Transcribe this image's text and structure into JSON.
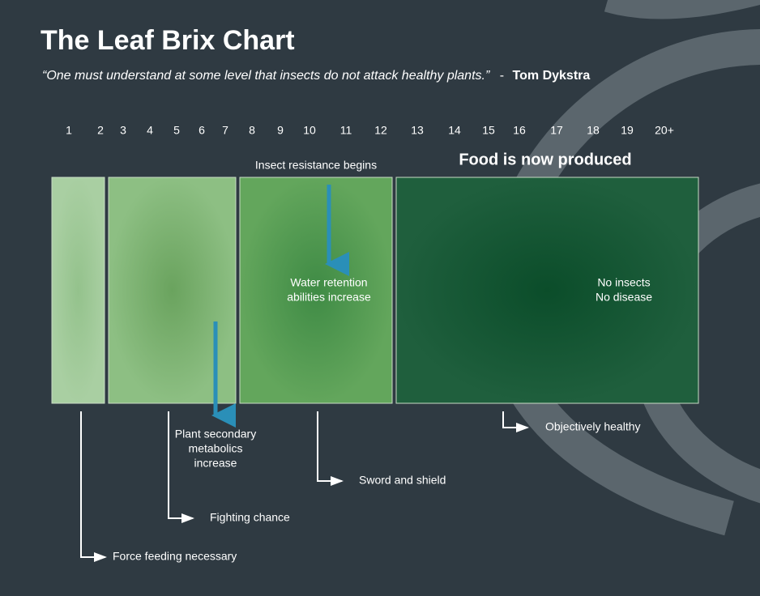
{
  "header": {
    "title": "The Leaf Brix Chart",
    "quote": "“One must understand at some level that insects do not attack healthy plants.”",
    "separator": "-",
    "author": "Tom Dykstra"
  },
  "scale": [
    "1",
    "2",
    "3",
    "4",
    "5",
    "6",
    "7",
    "8",
    "9",
    "10",
    "11",
    "12",
    "13",
    "14",
    "15",
    "16",
    "17",
    "18",
    "19",
    "20+"
  ],
  "headings": {
    "insect_resistance": "Insect resistance begins",
    "food": "Food is now produced"
  },
  "blocks": [
    {
      "lines": []
    },
    {
      "lines": [
        "Plant secondary",
        "metabolics",
        "increase"
      ]
    },
    {
      "lines": [
        "Water retention",
        "abilities increase"
      ]
    },
    {
      "lines": [
        "No insects",
        "No disease"
      ]
    }
  ],
  "annotations": [
    "Force feeding necessary",
    "Fighting chance",
    "Sword and shield",
    "Objectively healthy"
  ]
}
